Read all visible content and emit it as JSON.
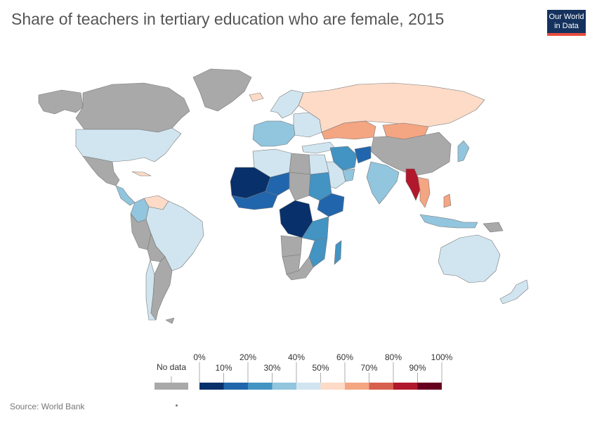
{
  "title": "Share of teachers in tertiary education who are female, 2015",
  "logo": {
    "line1": "Our World",
    "line2": "in Data"
  },
  "source": "Source: World Bank",
  "colors": {
    "no_data": "#a9a9a9",
    "border": "#777777",
    "bins": [
      "#08306b",
      "#2166ac",
      "#4393c3",
      "#92c5de",
      "#d1e5f0",
      "#fddbc7",
      "#f4a582",
      "#d6604d",
      "#b2182b",
      "#67001f"
    ]
  },
  "legend": {
    "no_data_label": "No data",
    "ticks_top": [
      "0%",
      "20%",
      "40%",
      "60%",
      "80%",
      "100%"
    ],
    "ticks_bottom": [
      "10%",
      "30%",
      "50%",
      "70%",
      "90%"
    ]
  },
  "regions": [
    {
      "name": "Canada",
      "bin": "none"
    },
    {
      "name": "Greenland",
      "bin": "none"
    },
    {
      "name": "Alaska",
      "bin": "none"
    },
    {
      "name": "United States",
      "bin": 4
    },
    {
      "name": "Mexico",
      "bin": "none"
    },
    {
      "name": "Central America",
      "bin": 3
    },
    {
      "name": "Cuba",
      "bin": 5
    },
    {
      "name": "Colombia",
      "bin": 3
    },
    {
      "name": "Venezuela",
      "bin": 5
    },
    {
      "name": "Brazil",
      "bin": 4
    },
    {
      "name": "Peru",
      "bin": "none"
    },
    {
      "name": "Bolivia",
      "bin": "none"
    },
    {
      "name": "Argentina",
      "bin": "none"
    },
    {
      "name": "Chile",
      "bin": 4
    },
    {
      "name": "Iceland",
      "bin": 5
    },
    {
      "name": "Scandinavia",
      "bin": 4
    },
    {
      "name": "Western Europe",
      "bin": 3
    },
    {
      "name": "Eastern Europe",
      "bin": 4
    },
    {
      "name": "Russia",
      "bin": 5
    },
    {
      "name": "Kazakhstan",
      "bin": 6
    },
    {
      "name": "Mongolia",
      "bin": 6
    },
    {
      "name": "China",
      "bin": "none"
    },
    {
      "name": "Japan",
      "bin": 3
    },
    {
      "name": "Turkey",
      "bin": 4
    },
    {
      "name": "Iran",
      "bin": 2
    },
    {
      "name": "Afghanistan",
      "bin": 1
    },
    {
      "name": "Saudi Arabia",
      "bin": 4
    },
    {
      "name": "Oman",
      "bin": 3
    },
    {
      "name": "India",
      "bin": 3
    },
    {
      "name": "Myanmar",
      "bin": 8
    },
    {
      "name": "Thailand",
      "bin": 6
    },
    {
      "name": "Indonesia",
      "bin": 3
    },
    {
      "name": "Philippines",
      "bin": 6
    },
    {
      "name": "Papua New Guinea",
      "bin": "none"
    },
    {
      "name": "Australia",
      "bin": 4
    },
    {
      "name": "New Zealand",
      "bin": 4
    },
    {
      "name": "Algeria",
      "bin": 4
    },
    {
      "name": "Libya",
      "bin": "none"
    },
    {
      "name": "Egypt",
      "bin": 4
    },
    {
      "name": "Mali",
      "bin": 0
    },
    {
      "name": "Niger",
      "bin": 1
    },
    {
      "name": "Chad",
      "bin": "none"
    },
    {
      "name": "Sudan",
      "bin": 2
    },
    {
      "name": "Ethiopia",
      "bin": 1
    },
    {
      "name": "West Africa",
      "bin": 1
    },
    {
      "name": "DR Congo",
      "bin": 0
    },
    {
      "name": "Tanzania",
      "bin": 2
    },
    {
      "name": "Mozambique",
      "bin": 2
    },
    {
      "name": "Madagascar",
      "bin": 2
    },
    {
      "name": "Angola",
      "bin": "none"
    },
    {
      "name": "Namibia",
      "bin": "none"
    },
    {
      "name": "South Africa",
      "bin": "none"
    },
    {
      "name": "Antarctic Peninsula",
      "bin": "none"
    }
  ]
}
